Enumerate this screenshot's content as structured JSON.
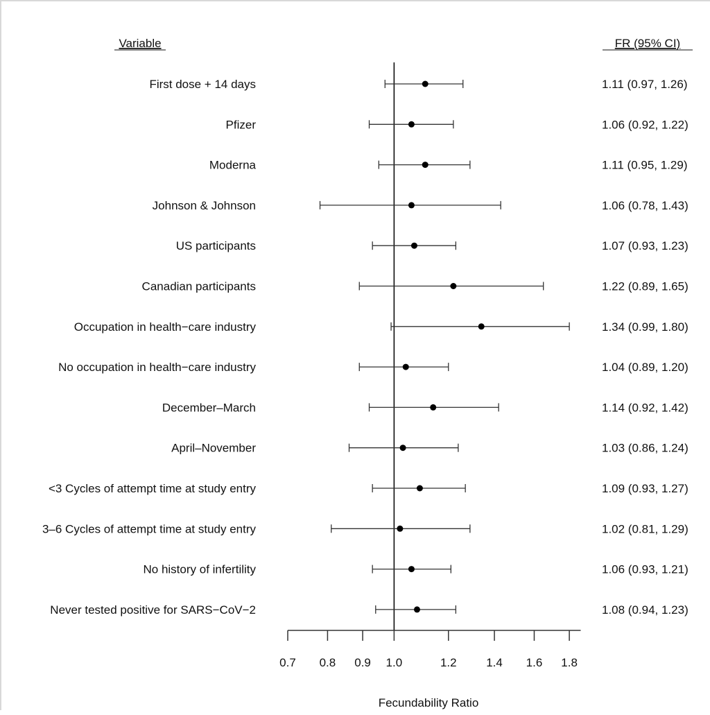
{
  "chart_data": {
    "type": "forest",
    "xlabel": "Fecundability Ratio",
    "x_scale": "log",
    "xlim": [
      0.7,
      1.87
    ],
    "xticks": [
      "0.7",
      "0.8",
      "0.9",
      "1.0",
      "1.2",
      "1.4",
      "1.6",
      "1.8"
    ],
    "reference_line": 1.0,
    "headers": {
      "variable": "Variable",
      "estimate": "FR (95% CI)"
    },
    "rows": [
      {
        "label": "First dose + 14 days",
        "fr": 1.11,
        "lo": 0.97,
        "hi": 1.26,
        "text": "1.11 (0.97, 1.26)"
      },
      {
        "label": "Pfizer",
        "fr": 1.06,
        "lo": 0.92,
        "hi": 1.22,
        "text": "1.06 (0.92, 1.22)"
      },
      {
        "label": "Moderna",
        "fr": 1.11,
        "lo": 0.95,
        "hi": 1.29,
        "text": "1.11 (0.95, 1.29)"
      },
      {
        "label": "Johnson & Johnson",
        "fr": 1.06,
        "lo": 0.78,
        "hi": 1.43,
        "text": "1.06 (0.78, 1.43)"
      },
      {
        "label": "US participants",
        "fr": 1.07,
        "lo": 0.93,
        "hi": 1.23,
        "text": "1.07 (0.93, 1.23)"
      },
      {
        "label": "Canadian participants",
        "fr": 1.22,
        "lo": 0.89,
        "hi": 1.65,
        "text": "1.22 (0.89, 1.65)"
      },
      {
        "label": "Occupation in health−care industry",
        "fr": 1.34,
        "lo": 0.99,
        "hi": 1.8,
        "text": "1.34 (0.99, 1.80)"
      },
      {
        "label": "No occupation in health−care industry",
        "fr": 1.04,
        "lo": 0.89,
        "hi": 1.2,
        "text": "1.04 (0.89, 1.20)"
      },
      {
        "label": "December–March",
        "fr": 1.14,
        "lo": 0.92,
        "hi": 1.42,
        "text": "1.14 (0.92, 1.42)"
      },
      {
        "label": "April–November",
        "fr": 1.03,
        "lo": 0.86,
        "hi": 1.24,
        "text": "1.03 (0.86, 1.24)"
      },
      {
        "label": "<3 Cycles of attempt time at study entry",
        "fr": 1.09,
        "lo": 0.93,
        "hi": 1.27,
        "text": "1.09 (0.93, 1.27)"
      },
      {
        "label": "3–6 Cycles of attempt time at study entry",
        "fr": 1.02,
        "lo": 0.81,
        "hi": 1.29,
        "text": "1.02 (0.81, 1.29)"
      },
      {
        "label": "No history of infertility",
        "fr": 1.06,
        "lo": 0.93,
        "hi": 1.21,
        "text": "1.06 (0.93, 1.21)"
      },
      {
        "label": "Never tested positive for SARS−CoV−2",
        "fr": 1.08,
        "lo": 0.94,
        "hi": 1.23,
        "text": "1.08 (0.94, 1.23)"
      }
    ],
    "colors": {
      "marks": "#000000",
      "ci_lines": "#333333"
    }
  }
}
